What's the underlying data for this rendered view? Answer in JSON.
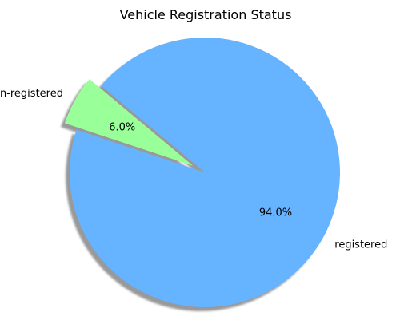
{
  "chart_data": {
    "type": "pie",
    "title": "Vehicle Registration Status",
    "slices": [
      {
        "label": "un-registered",
        "value": 6.0,
        "percent_label": "6.0%",
        "color": "#99ff99",
        "exploded": true
      },
      {
        "label": "registered",
        "value": 94.0,
        "percent_label": "94.0%",
        "color": "#66b3ff",
        "exploded": false
      }
    ],
    "start_angle_deg": 140,
    "shadow": true,
    "legend": "none"
  }
}
